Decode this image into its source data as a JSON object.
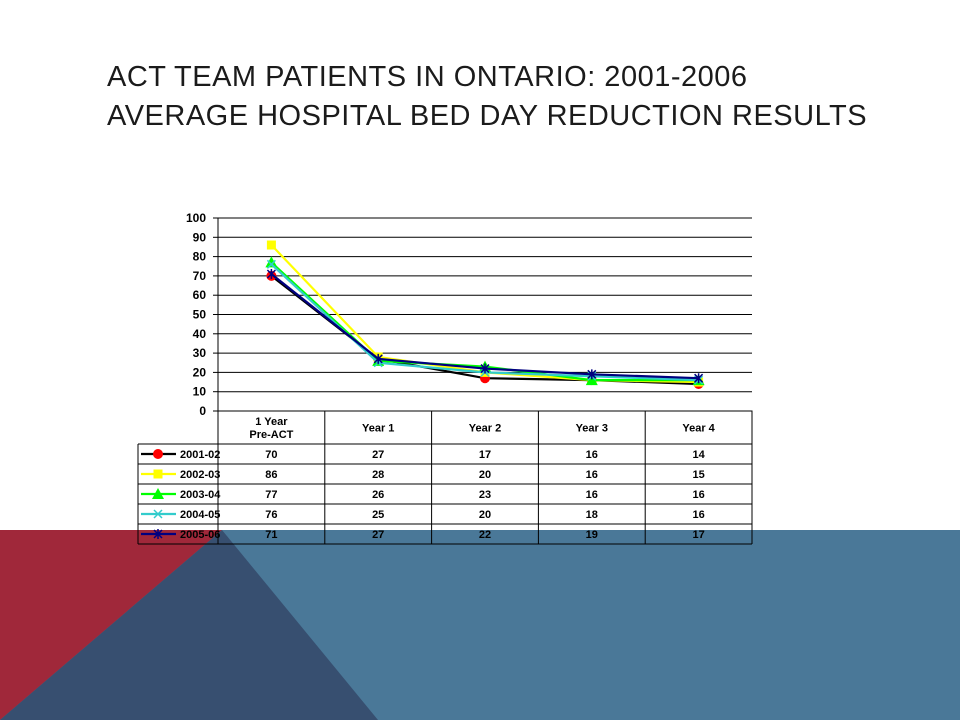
{
  "slide": {
    "title_line1": "ACT TEAM PATIENTS IN ONTARIO: 2001-2006",
    "title_line2": "AVERAGE HOSPITAL BED DAY REDUCTION RESULTS"
  },
  "chart_data": {
    "type": "line",
    "title": "",
    "xlabel": "",
    "ylabel": "",
    "categories": [
      "1 Year Pre-ACT",
      "Year 1",
      "Year 2",
      "Year 3",
      "Year 4"
    ],
    "ylim": [
      0,
      100
    ],
    "yticks": [
      0,
      10,
      20,
      30,
      40,
      50,
      60,
      70,
      80,
      90,
      100
    ],
    "grid": true,
    "legend": "data table below chart",
    "series": [
      {
        "name": "2001-02",
        "values": [
          70,
          27,
          17,
          16,
          14
        ],
        "color": "#000000",
        "marker": "circle",
        "marker_color": "#ff0000"
      },
      {
        "name": "2002-03",
        "values": [
          86,
          28,
          20,
          16,
          15
        ],
        "color": "#ffff00",
        "marker": "square",
        "marker_color": "#ffff00"
      },
      {
        "name": "2003-04",
        "values": [
          77,
          26,
          23,
          16,
          16
        ],
        "color": "#00ff00",
        "marker": "triangle",
        "marker_color": "#00ff00"
      },
      {
        "name": "2004-05",
        "values": [
          76,
          25,
          20,
          18,
          16
        ],
        "color": "#33cccc",
        "marker": "x",
        "marker_color": "#33cccc"
      },
      {
        "name": "2005-06",
        "values": [
          71,
          27,
          22,
          19,
          17
        ],
        "color": "#000080",
        "marker": "star",
        "marker_color": "#000080"
      }
    ]
  },
  "colors": {
    "accent_red": "#a0283a",
    "accent_navy": "#374f70",
    "accent_blue": "#4a7898"
  }
}
